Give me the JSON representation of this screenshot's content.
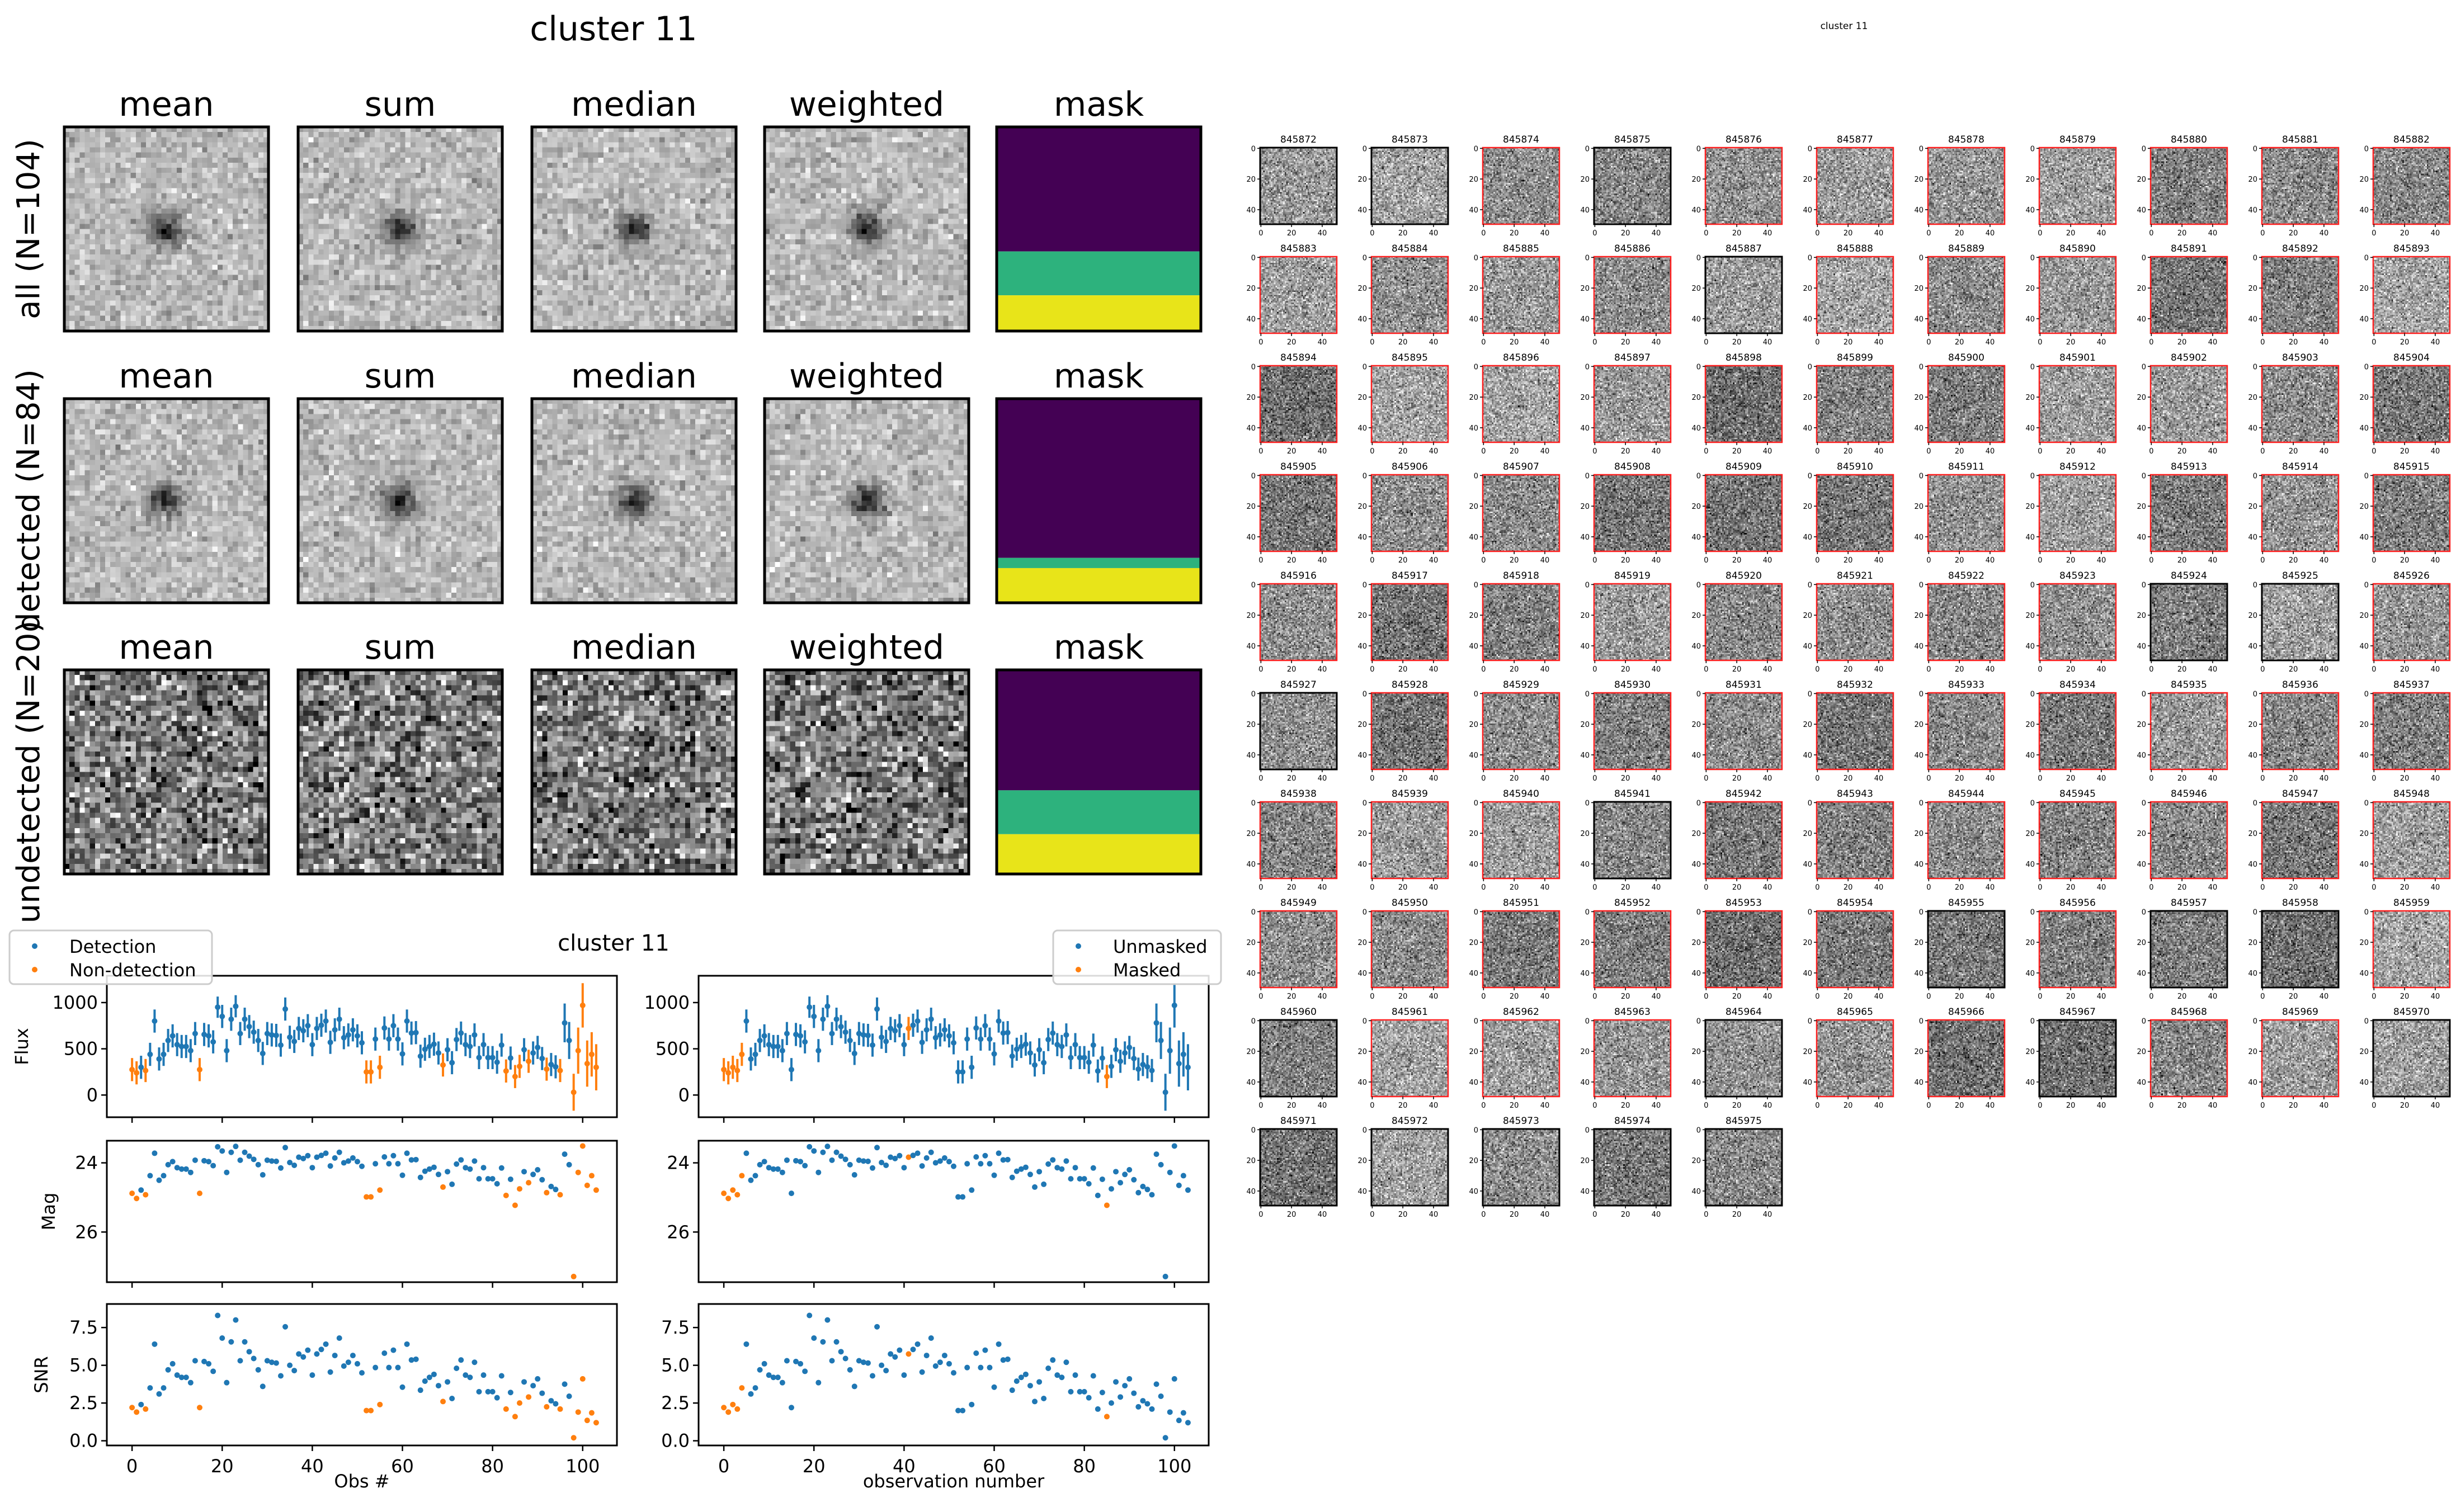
{
  "figure_title": "cluster 11",
  "stamps": {
    "column_titles": [
      "mean",
      "sum",
      "median",
      "weighted",
      "mask"
    ],
    "rows": [
      {
        "label": "all (N=104)",
        "kind": "all",
        "mask_fractions": [
          0.61,
          0.215,
          0.175
        ]
      },
      {
        "label": "detected (N=84)",
        "kind": "detected",
        "mask_fractions": [
          0.78,
          0.05,
          0.17
        ]
      },
      {
        "label": "undetected (N=20)",
        "kind": "undetected",
        "mask_fractions": [
          0.59,
          0.215,
          0.195
        ]
      }
    ],
    "mask_colors": [
      "#440154",
      "#2db27d",
      "#e8e419"
    ]
  },
  "chart_data": {
    "type": "scatter",
    "title": "cluster 11",
    "colors": {
      "blue": "#1f77b4",
      "orange": "#ff7f0e"
    },
    "legend_left": {
      "placement": "upper-left",
      "entries": [
        "Detection",
        "Non-detection"
      ]
    },
    "legend_right": {
      "placement": "upper-right",
      "entries": [
        "Unmasked",
        "Masked"
      ]
    },
    "xlabel_left": "Obs #",
    "xlabel_right": "observation number",
    "xlim": [
      -5.6,
      107.6
    ],
    "xticks": [
      0,
      20,
      40,
      60,
      80,
      100
    ],
    "panels": [
      {
        "ylabel": "Flux",
        "ylim": [
          -240,
          1290
        ],
        "yticks": [
          0,
          500,
          1000
        ],
        "ytick_labels": [
          "0",
          "500",
          "1000"
        ],
        "inverted": false
      },
      {
        "ylabel": "Mag",
        "ylim": [
          23.36,
          27.45
        ],
        "yticks": [
          24,
          26
        ],
        "ytick_labels": [
          "24",
          "26"
        ],
        "inverted": true
      },
      {
        "ylabel": "SNR",
        "ylim": [
          -0.31,
          9.06
        ],
        "yticks": [
          0,
          2.5,
          5,
          7.5
        ],
        "ytick_labels": [
          "0.0",
          "2.5",
          "5.0",
          "7.5"
        ],
        "inverted": false
      }
    ],
    "mag_zeropoint": 30.98,
    "flux": [
      275,
      240,
      300,
      265,
      440,
      800,
      390,
      440,
      590,
      640,
      545,
      525,
      525,
      480,
      665,
      275,
      655,
      640,
      575,
      950,
      850,
      480,
      820,
      960,
      665,
      820,
      740,
      680,
      590,
      450,
      665,
      650,
      645,
      540,
      930,
      625,
      580,
      720,
      695,
      750,
      545,
      720,
      755,
      800,
      570,
      705,
      820,
      620,
      650,
      705,
      640,
      565,
      250,
      250,
      605,
      300,
      725,
      605,
      750,
      605,
      445,
      800,
      670,
      675,
      420,
      495,
      525,
      550,
      455,
      325,
      490,
      350,
      600,
      670,
      545,
      525,
      650,
      405,
      545,
      405,
      405,
      355,
      540,
      260,
      400,
      200,
      310,
      490,
      365,
      455,
      515,
      395,
      280,
      330,
      305,
      265,
      780,
      590,
      30,
      480,
      970,
      340,
      440,
      300
    ],
    "flux_err": [
      125,
      125,
      125,
      125,
      125,
      125,
      125,
      125,
      125,
      125,
      125,
      125,
      125,
      125,
      125,
      125,
      125,
      125,
      125,
      115,
      125,
      125,
      125,
      120,
      125,
      125,
      125,
      125,
      125,
      125,
      125,
      125,
      125,
      125,
      125,
      125,
      125,
      125,
      125,
      125,
      125,
      125,
      125,
      125,
      125,
      125,
      125,
      125,
      125,
      125,
      125,
      125,
      125,
      125,
      125,
      125,
      125,
      125,
      125,
      125,
      125,
      125,
      125,
      125,
      125,
      125,
      125,
      125,
      125,
      125,
      125,
      125,
      125,
      125,
      125,
      125,
      125,
      125,
      125,
      125,
      125,
      125,
      125,
      125,
      125,
      125,
      125,
      125,
      125,
      125,
      125,
      125,
      125,
      125,
      125,
      125,
      210,
      200,
      200,
      250,
      240,
      250,
      240,
      250
    ],
    "snr": [
      2.2,
      1.9,
      2.4,
      2.1,
      3.5,
      6.4,
      3.1,
      3.5,
      4.7,
      5.1,
      4.35,
      4.2,
      4.2,
      3.85,
      5.3,
      2.2,
      5.25,
      5.1,
      4.6,
      8.3,
      6.8,
      3.85,
      6.55,
      8.0,
      5.3,
      6.55,
      5.9,
      5.45,
      4.7,
      3.6,
      5.3,
      5.2,
      5.15,
      4.3,
      7.55,
      5.0,
      4.65,
      5.75,
      5.55,
      6.0,
      4.35,
      5.75,
      6.05,
      6.4,
      4.55,
      5.65,
      6.8,
      4.95,
      5.2,
      5.65,
      5.1,
      4.5,
      2.0,
      2.0,
      4.85,
      2.4,
      5.8,
      4.85,
      6.0,
      4.85,
      3.55,
      6.4,
      5.35,
      5.4,
      3.35,
      3.95,
      4.2,
      4.4,
      3.65,
      2.6,
      3.9,
      2.8,
      4.8,
      5.35,
      4.35,
      4.2,
      5.2,
      3.25,
      4.35,
      3.25,
      3.25,
      2.85,
      4.3,
      2.1,
      3.2,
      1.6,
      2.5,
      3.9,
      2.9,
      3.65,
      4.1,
      3.15,
      2.25,
      2.65,
      2.45,
      2.1,
      3.75,
      2.95,
      0.2,
      1.9,
      4.1,
      1.35,
      1.85,
      1.2
    ],
    "non_detection_obs": [
      0,
      1,
      3,
      15,
      52,
      53,
      55,
      69,
      83,
      85,
      86,
      88,
      92,
      95,
      98,
      99,
      100,
      101,
      102,
      103
    ],
    "masked_obs": [
      0,
      1,
      2,
      3,
      4,
      41,
      85
    ]
  },
  "thumbnails": {
    "title": "cluster 11",
    "tick_labels": [
      "0",
      "20",
      "40"
    ],
    "first_id": 845872,
    "count": 104,
    "undetected_ids": [
      845872,
      845873,
      845875,
      845887,
      845924,
      845925,
      845927,
      845941,
      845955,
      845957,
      845958,
      845960,
      845964,
      845967,
      845970,
      845971,
      845972,
      845973,
      845974,
      845975
    ],
    "border_colors": {
      "detected": "#ff2020",
      "undetected": "#000000"
    }
  }
}
